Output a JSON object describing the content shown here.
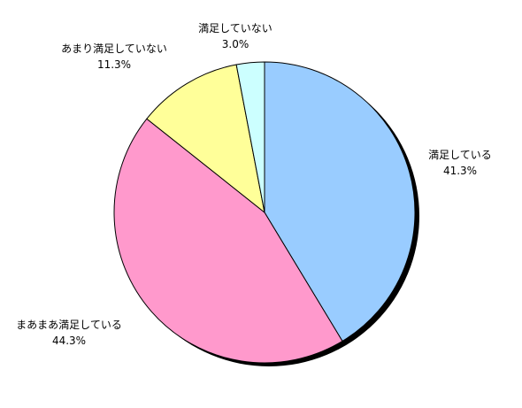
{
  "chart_data": {
    "type": "pie",
    "title": "",
    "slices": [
      {
        "label": "満足している",
        "value": 41.3,
        "display": "41.3%",
        "color": "#99ccff"
      },
      {
        "label": "まあまあ満足している",
        "value": 44.3,
        "display": "44.3%",
        "color": "#ff99cc"
      },
      {
        "label": "あまり満足していない",
        "value": 11.3,
        "display": "11.3%",
        "color": "#ffff99"
      },
      {
        "label": "満足していない",
        "value": 3.0,
        "display": "3.0%",
        "color": "#ccffff"
      }
    ],
    "start_angle_deg": 0,
    "direction": "clockwise",
    "legend": "none",
    "data_labels": "outside"
  }
}
